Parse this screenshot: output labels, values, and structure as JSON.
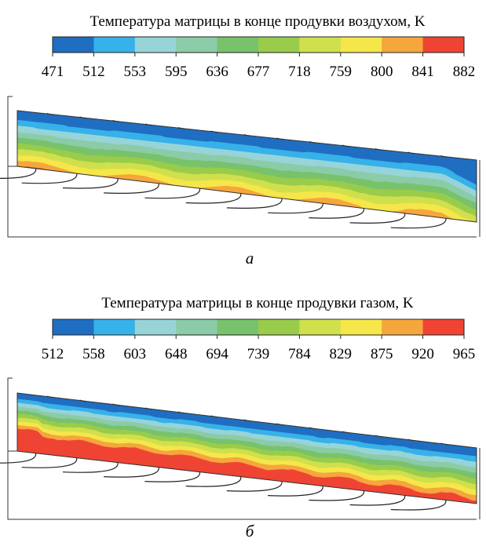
{
  "colors": [
    "#1f6ec1",
    "#36b1ea",
    "#97d4d8",
    "#8ccba8",
    "#78c26c",
    "#99cc4b",
    "#cfe04c",
    "#f5e64a",
    "#f5a63d",
    "#ef4433"
  ],
  "panels": [
    {
      "id": "a",
      "title": "Температура матрицы в конце продувки воздухом, K",
      "ticks": [
        "471",
        "512",
        "553",
        "595",
        "636",
        "677",
        "718",
        "759",
        "800",
        "841",
        "882"
      ],
      "caption": "а",
      "field": "air"
    },
    {
      "id": "b",
      "title": "Температура матрицы в конце продувки газом, K",
      "ticks": [
        "512",
        "558",
        "603",
        "648",
        "694",
        "739",
        "784",
        "829",
        "875",
        "920",
        "965"
      ],
      "caption": "б",
      "field": "gas"
    }
  ]
}
